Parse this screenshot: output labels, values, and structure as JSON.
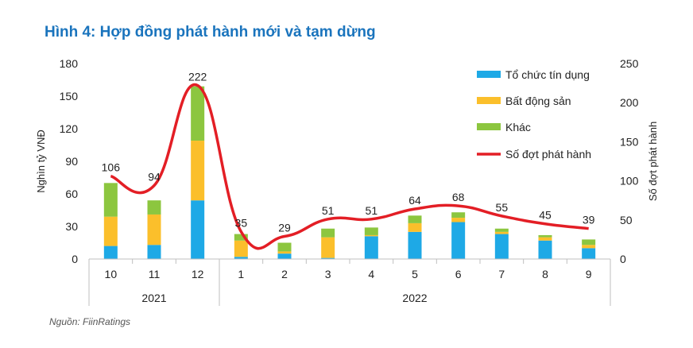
{
  "title": "Hình 4: Hợp đồng phát hành mới và tạm dừng",
  "source": "Nguồn: FiinRatings",
  "chart_data": {
    "type": "bar",
    "stacked": true,
    "categories": [
      "10",
      "11",
      "12",
      "1",
      "2",
      "3",
      "4",
      "5",
      "6",
      "7",
      "8",
      "9"
    ],
    "year_groups": [
      {
        "label": "2021",
        "categories": [
          "10",
          "11",
          "12"
        ]
      },
      {
        "label": "2022",
        "categories": [
          "1",
          "2",
          "3",
          "4",
          "5",
          "6",
          "7",
          "8",
          "9"
        ]
      }
    ],
    "series": [
      {
        "name": "Tổ chức tín dụng",
        "color": "#1ea9e6",
        "axis": "left",
        "values": [
          12,
          13,
          54,
          2,
          5,
          1,
          21,
          25,
          34,
          23,
          17,
          10
        ]
      },
      {
        "name": "Bất động sản",
        "color": "#fbbf2b",
        "axis": "left",
        "values": [
          27,
          28,
          55,
          15,
          2,
          19,
          1,
          8,
          4,
          2,
          3,
          3
        ]
      },
      {
        "name": "Khác",
        "color": "#8cc63f",
        "axis": "left",
        "values": [
          31,
          13,
          50,
          6,
          8,
          8,
          7,
          7,
          5,
          3,
          2,
          5
        ]
      }
    ],
    "line": {
      "name": "Số đợt phát hành",
      "color": "#e31e25",
      "axis": "right",
      "values": [
        106,
        94,
        222,
        35,
        29,
        51,
        51,
        64,
        68,
        55,
        45,
        39
      ]
    },
    "ylabel": "Nghìn tỷ VNĐ",
    "y2label": "Số đợt phát hành",
    "ylim": [
      0,
      180
    ],
    "yticks": [
      0,
      30,
      60,
      90,
      120,
      150,
      180
    ],
    "y2lim": [
      0,
      250
    ],
    "y2ticks": [
      0,
      50,
      100,
      150,
      200,
      250
    ],
    "legend_position": "top-right",
    "grid": false
  }
}
